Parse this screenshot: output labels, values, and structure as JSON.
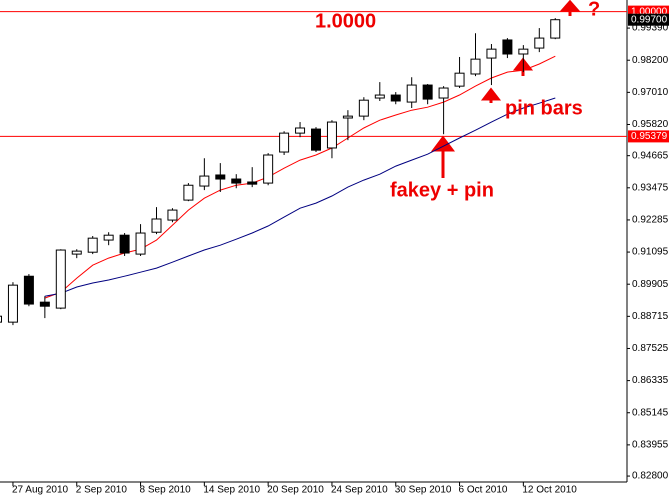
{
  "chart_data": {
    "type": "candlestick",
    "categories": [
      null,
      "27 Aug 2010",
      null,
      null,
      null,
      "2 Sep 2010",
      null,
      null,
      null,
      "8 Sep 2010",
      null,
      null,
      null,
      "14 Sep 2010",
      null,
      null,
      null,
      "20 Sep 2010",
      null,
      null,
      null,
      "24 Sep 2010",
      null,
      null,
      null,
      "30 Sep 2010",
      null,
      null,
      null,
      "6 Oct 2010",
      null,
      null,
      null,
      "12 Oct 2010",
      null,
      null
    ],
    "open": [
      0.885,
      0.885,
      0.902,
      0.8924,
      0.8902,
      0.9102,
      0.9109,
      0.9154,
      0.9172,
      0.9102,
      0.9183,
      0.9228,
      0.9302,
      0.9354,
      0.9395,
      0.938,
      0.9369,
      0.9365,
      0.948,
      0.955,
      0.9565,
      0.9495,
      0.9606,
      0.9613,
      0.968,
      0.9691,
      0.9665,
      0.9728,
      0.968,
      0.9724,
      0.9769,
      0.9828,
      0.9895,
      0.9843,
      0.9865,
      0.9902
    ],
    "high": [
      0.888,
      0.8998,
      0.9028,
      0.8946,
      0.912,
      0.912,
      0.9169,
      0.9183,
      0.918,
      0.9213,
      0.9276,
      0.9272,
      0.9365,
      0.9457,
      0.9439,
      0.9398,
      0.9424,
      0.9476,
      0.9557,
      0.9591,
      0.9572,
      0.9598,
      0.9635,
      0.9683,
      0.9739,
      0.9702,
      0.9757,
      0.9732,
      0.9724,
      0.9832,
      0.992,
      0.988,
      0.9902,
      0.9876,
      0.9939,
      0.9976
    ],
    "low": [
      0.8839,
      0.8839,
      0.8909,
      0.8865,
      0.8898,
      0.9087,
      0.9102,
      0.9135,
      0.9095,
      0.9095,
      0.9176,
      0.922,
      0.9298,
      0.9339,
      0.9332,
      0.9346,
      0.935,
      0.9357,
      0.9469,
      0.9535,
      0.948,
      0.9457,
      0.9524,
      0.9598,
      0.9669,
      0.9657,
      0.9643,
      0.9657,
      0.9546,
      0.9717,
      0.9761,
      0.9728,
      0.9828,
      0.9776,
      0.985,
      0.9898
    ],
    "close": [
      0.8872,
      0.8987,
      0.8917,
      0.8909,
      0.9117,
      0.9113,
      0.9161,
      0.9172,
      0.9106,
      0.918,
      0.9232,
      0.9265,
      0.9357,
      0.9391,
      0.938,
      0.9365,
      0.9361,
      0.9469,
      0.955,
      0.9569,
      0.9487,
      0.9591,
      0.9613,
      0.9672,
      0.9691,
      0.9669,
      0.9728,
      0.9676,
      0.9717,
      0.9772,
      0.9824,
      0.9861,
      0.9843,
      0.9861,
      0.9902,
      0.997
    ],
    "up_color": "#ffffff",
    "down_color": "#000000",
    "lines": [
      {
        "color": "#ff0000",
        "values": [
          null,
          null,
          null,
          0.8939,
          0.8961,
          0.9013,
          0.9061,
          0.9087,
          0.9106,
          0.912,
          0.9154,
          0.9209,
          0.9265,
          0.9309,
          0.9339,
          0.9357,
          0.9365,
          0.9387,
          0.942,
          0.945,
          0.9469,
          0.9495,
          0.9532,
          0.9569,
          0.9598,
          0.9617,
          0.9635,
          0.9646,
          0.9665,
          0.9691,
          0.9724,
          0.9754,
          0.9776,
          0.9783,
          0.9806,
          0.9835
        ]
      },
      {
        "color": "#000080",
        "values": [
          null,
          null,
          null,
          0.8946,
          0.8957,
          0.898,
          0.8995,
          0.9006,
          0.902,
          0.9035,
          0.905,
          0.9072,
          0.9095,
          0.9117,
          0.9135,
          0.9157,
          0.918,
          0.9206,
          0.9239,
          0.9272,
          0.9291,
          0.9317,
          0.935,
          0.9376,
          0.9398,
          0.9428,
          0.945,
          0.9472,
          0.9502,
          0.9532,
          0.9561,
          0.9591,
          0.962,
          0.9643,
          0.9661,
          0.968
        ]
      }
    ],
    "ylim": [
      0.8258,
      1.0043
    ],
    "yticks": [
      {
        "value": 0.9939,
        "label": "0.99390"
      },
      {
        "value": 0.982,
        "label": "0.98200"
      },
      {
        "value": 0.9701,
        "label": "0.97010"
      },
      {
        "value": 0.9582,
        "label": "0.95820"
      },
      {
        "value": 0.94665,
        "label": "0.94665"
      },
      {
        "value": 0.93475,
        "label": "0.93475"
      },
      {
        "value": 0.92285,
        "label": "0.92285"
      },
      {
        "value": 0.91095,
        "label": "0.91095"
      },
      {
        "value": 0.89905,
        "label": "0.89905"
      },
      {
        "value": 0.88715,
        "label": "0.88715"
      },
      {
        "value": 0.87525,
        "label": "0.87525"
      },
      {
        "value": 0.86335,
        "label": "0.86335"
      },
      {
        "value": 0.85145,
        "label": "0.85145"
      },
      {
        "value": 0.83955,
        "label": "0.83955"
      },
      {
        "value": 0.828,
        "label": "0.82800"
      }
    ],
    "hlines": [
      {
        "value": 1.0,
        "label": "1.00000",
        "color": "#ff0000"
      },
      {
        "value": 0.95379,
        "label": "0.95379",
        "color": "#ff0000"
      }
    ],
    "price_marker": {
      "value": 0.997,
      "label": "0.99700"
    },
    "annotations": [
      "1.0000",
      "pin bars",
      "fakey + pin",
      "?"
    ]
  }
}
